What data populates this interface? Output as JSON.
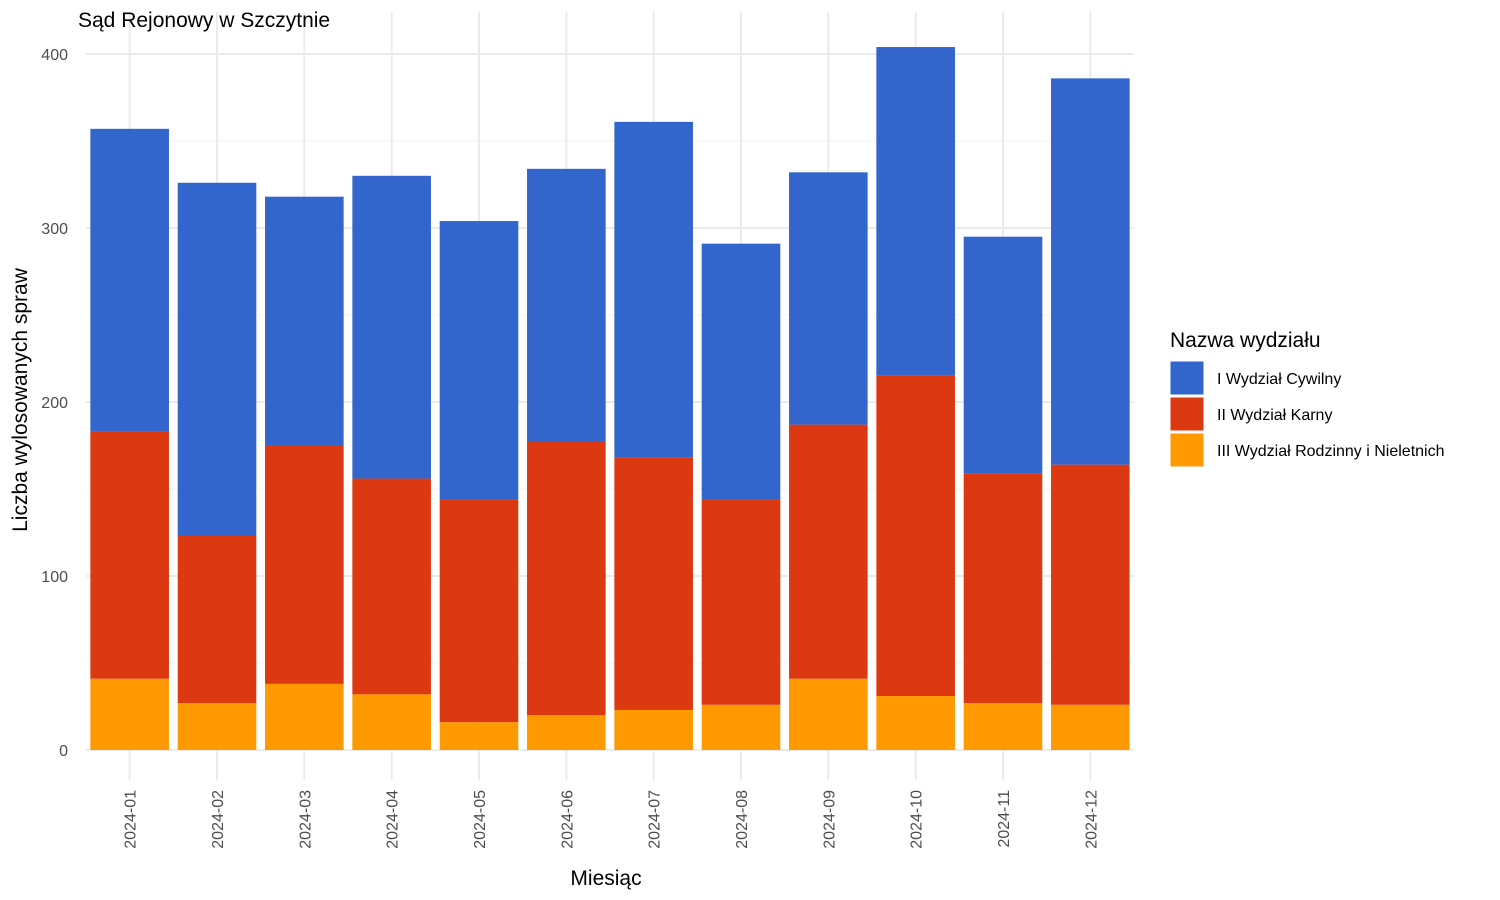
{
  "chart_data": {
    "type": "bar",
    "stacked": true,
    "title": "Sąd Rejonowy w Szczytnie",
    "xlabel": "Miesiąc",
    "ylabel": "Liczba wylosowanych spraw",
    "ylim": [
      0,
      420
    ],
    "yticks": [
      0,
      100,
      200,
      300,
      400
    ],
    "grid": true,
    "legend": {
      "title": "Nazwa wydziału",
      "position": "right"
    },
    "categories": [
      "2024-01",
      "2024-02",
      "2024-03",
      "2024-04",
      "2024-05",
      "2024-06",
      "2024-07",
      "2024-08",
      "2024-09",
      "2024-10",
      "2024-11",
      "2024-12"
    ],
    "series": [
      {
        "name": "III Wydział Rodzinny i Nieletnich",
        "color": "#ff9900",
        "values": [
          41,
          27,
          38,
          32,
          16,
          20,
          23,
          26,
          41,
          31,
          27,
          26
        ]
      },
      {
        "name": "II Wydział Karny",
        "color": "#dc3912",
        "values": [
          142,
          96,
          137,
          124,
          128,
          157,
          145,
          118,
          146,
          184,
          132,
          138
        ]
      },
      {
        "name": "I Wydział Cywilny",
        "color": "#3366cc",
        "values": [
          174,
          203,
          143,
          174,
          160,
          157,
          193,
          147,
          145,
          189,
          136,
          222
        ]
      }
    ],
    "legend_order": [
      "I Wydział Cywilny",
      "II Wydział Karny",
      "III Wydział Rodzinny i Nieletnich"
    ]
  }
}
